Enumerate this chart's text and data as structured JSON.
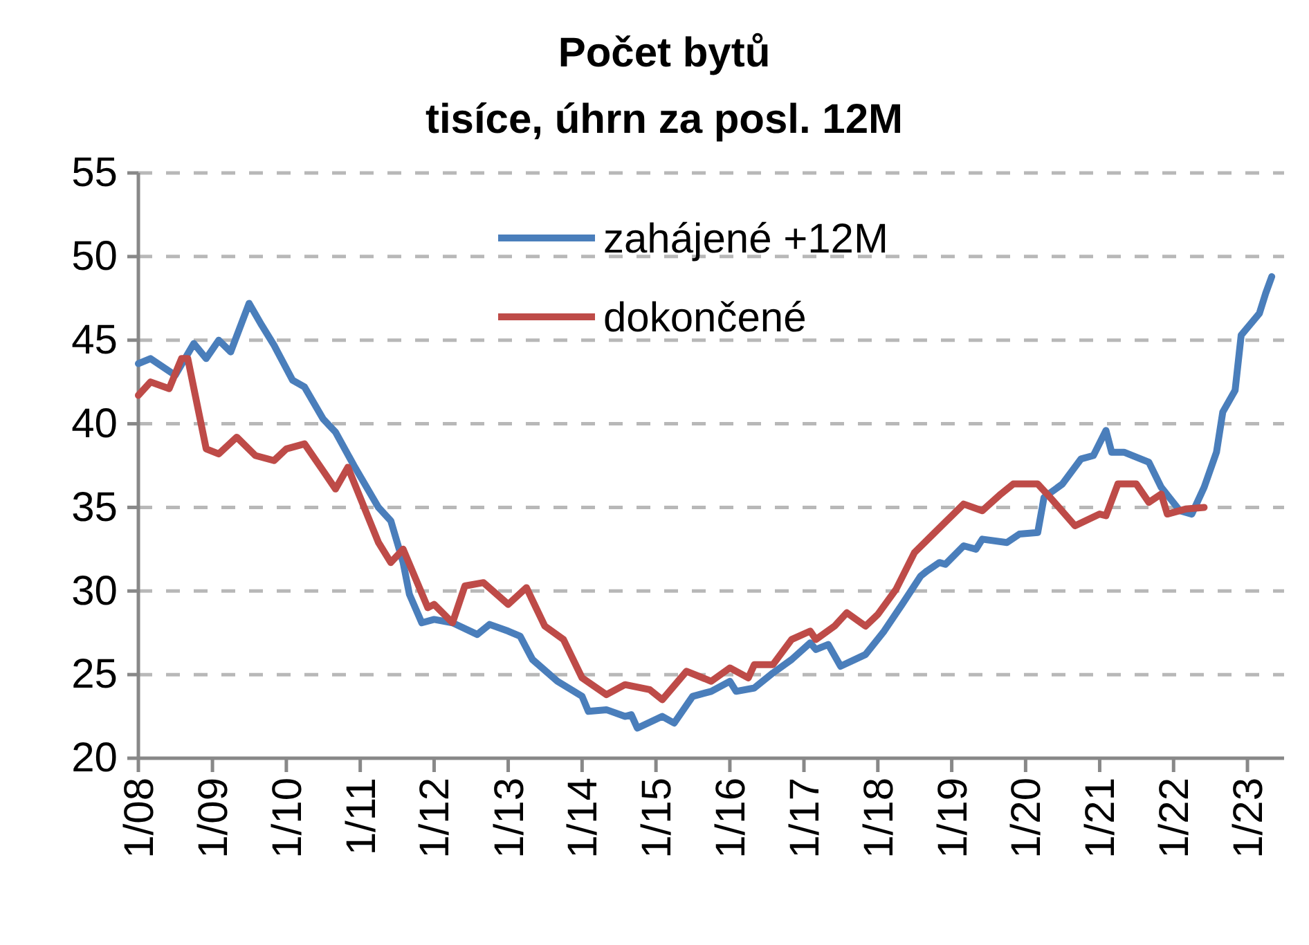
{
  "chart_data": {
    "type": "line",
    "title": "Počet bytů",
    "subtitle": "tisíce, úhrn za posl. 12M",
    "xlim": [
      "2008-01",
      "2023-07"
    ],
    "xticks": [
      {
        "value": "2008-01",
        "label": "1/08"
      },
      {
        "value": "2009-01",
        "label": "1/09"
      },
      {
        "value": "2010-01",
        "label": "1/10"
      },
      {
        "value": "2011-01",
        "label": "1/11"
      },
      {
        "value": "2012-01",
        "label": "1/12"
      },
      {
        "value": "2013-01",
        "label": "1/13"
      },
      {
        "value": "2014-01",
        "label": "1/14"
      },
      {
        "value": "2015-01",
        "label": "1/15"
      },
      {
        "value": "2016-01",
        "label": "1/16"
      },
      {
        "value": "2017-01",
        "label": "1/17"
      },
      {
        "value": "2018-01",
        "label": "1/18"
      },
      {
        "value": "2019-01",
        "label": "1/19"
      },
      {
        "value": "2020-01",
        "label": "1/20"
      },
      {
        "value": "2021-01",
        "label": "1/21"
      },
      {
        "value": "2022-01",
        "label": "1/22"
      },
      {
        "value": "2023-01",
        "label": "1/23"
      }
    ],
    "ylim": [
      20,
      55
    ],
    "yticks": [
      20,
      25,
      30,
      35,
      40,
      45,
      50,
      55
    ],
    "grid": "y",
    "legend": "top right",
    "line_style": "solid",
    "marker": "none",
    "series": [
      {
        "name": "zahájené +12M",
        "color": "#4a7ebb",
        "x": [
          "2008-01",
          "2008-03",
          "2008-07",
          "2008-10",
          "2008-12",
          "2009-02",
          "2009-04",
          "2009-07",
          "2009-09",
          "2009-11",
          "2010-02",
          "2010-04",
          "2010-07",
          "2010-09",
          "2010-12",
          "2011-04",
          "2011-06",
          "2011-08",
          "2011-09",
          "2011-11",
          "2012-01",
          "2012-04",
          "2012-08",
          "2012-10",
          "2013-01",
          "2013-03",
          "2013-05",
          "2013-09",
          "2014-01",
          "2014-02",
          "2014-05",
          "2014-08",
          "2014-09",
          "2014-10",
          "2015-02",
          "2015-04",
          "2015-07",
          "2015-10",
          "2016-01",
          "2016-02",
          "2016-05",
          "2016-08",
          "2016-11",
          "2017-02",
          "2017-03",
          "2017-05",
          "2017-07",
          "2017-11",
          "2018-02",
          "2018-05",
          "2018-08",
          "2018-09",
          "2018-11",
          "2018-12",
          "2019-03",
          "2019-05",
          "2019-06",
          "2019-10",
          "2019-12",
          "2020-03",
          "2020-04",
          "2020-07",
          "2020-10",
          "2020-12",
          "2021-02",
          "2021-03",
          "2021-05",
          "2021-09",
          "2021-11",
          "2022-02",
          "2022-04",
          "2022-06",
          "2022-08",
          "2022-09",
          "2022-11",
          "2022-12",
          "2023-03",
          "2023-04",
          "2023-05"
        ],
        "values": [
          43.6,
          43.9,
          42.9,
          44.8,
          43.9,
          45.0,
          44.3,
          47.2,
          45.9,
          44.7,
          42.6,
          42.2,
          40.3,
          39.5,
          37.5,
          35.0,
          34.2,
          31.7,
          29.8,
          28.1,
          28.3,
          28.1,
          27.4,
          28.0,
          27.6,
          27.3,
          25.9,
          24.6,
          23.7,
          22.8,
          22.9,
          22.5,
          22.6,
          21.8,
          22.5,
          22.1,
          23.7,
          24.0,
          24.6,
          24.0,
          24.2,
          25.1,
          25.9,
          26.9,
          26.5,
          26.8,
          25.5,
          26.2,
          27.6,
          29.2,
          30.9,
          31.2,
          31.7,
          31.6,
          32.7,
          32.5,
          33.1,
          32.9,
          33.4,
          33.5,
          35.6,
          36.4,
          37.9,
          38.1,
          39.6,
          38.3,
          38.3,
          37.7,
          36.2,
          34.8,
          34.6,
          36.2,
          38.3,
          40.7,
          42.0,
          45.3,
          46.6,
          47.8,
          48.8
        ]
      },
      {
        "name": "dokončené",
        "color": "#be4b48",
        "x": [
          "2008-01",
          "2008-03",
          "2008-06",
          "2008-08",
          "2008-09",
          "2008-12",
          "2009-02",
          "2009-05",
          "2009-08",
          "2009-11",
          "2010-01",
          "2010-04",
          "2010-07",
          "2010-09",
          "2010-11",
          "2011-04",
          "2011-06",
          "2011-08",
          "2011-12",
          "2012-01",
          "2012-04",
          "2012-06",
          "2012-09",
          "2013-01",
          "2013-04",
          "2013-07",
          "2013-10",
          "2014-01",
          "2014-05",
          "2014-08",
          "2014-12",
          "2015-02",
          "2015-06",
          "2015-10",
          "2016-01",
          "2016-04",
          "2016-05",
          "2016-08",
          "2016-11",
          "2017-02",
          "2017-03",
          "2017-06",
          "2017-08",
          "2017-11",
          "2018-01",
          "2018-04",
          "2018-07",
          "2018-10",
          "2019-03",
          "2019-06",
          "2019-09",
          "2019-11",
          "2020-03",
          "2020-05",
          "2020-09",
          "2021-01",
          "2021-02",
          "2021-04",
          "2021-07",
          "2021-09",
          "2021-11",
          "2021-12",
          "2022-03",
          "2022-06"
        ],
        "values": [
          41.7,
          42.5,
          42.1,
          43.9,
          43.9,
          38.5,
          38.2,
          39.2,
          38.1,
          37.8,
          38.5,
          38.8,
          37.2,
          36.1,
          37.4,
          32.9,
          31.7,
          32.5,
          29.0,
          29.2,
          28.1,
          30.3,
          30.5,
          29.2,
          30.2,
          27.9,
          27.1,
          24.8,
          23.8,
          24.4,
          24.1,
          23.5,
          25.2,
          24.6,
          25.4,
          24.8,
          25.6,
          25.6,
          27.1,
          27.6,
          27.1,
          27.9,
          28.7,
          27.9,
          28.6,
          30.1,
          32.3,
          33.4,
          35.2,
          34.8,
          35.8,
          36.4,
          36.4,
          35.6,
          33.9,
          34.6,
          34.5,
          36.4,
          36.4,
          35.3,
          35.8,
          34.6,
          34.9,
          35.0
        ]
      }
    ]
  }
}
